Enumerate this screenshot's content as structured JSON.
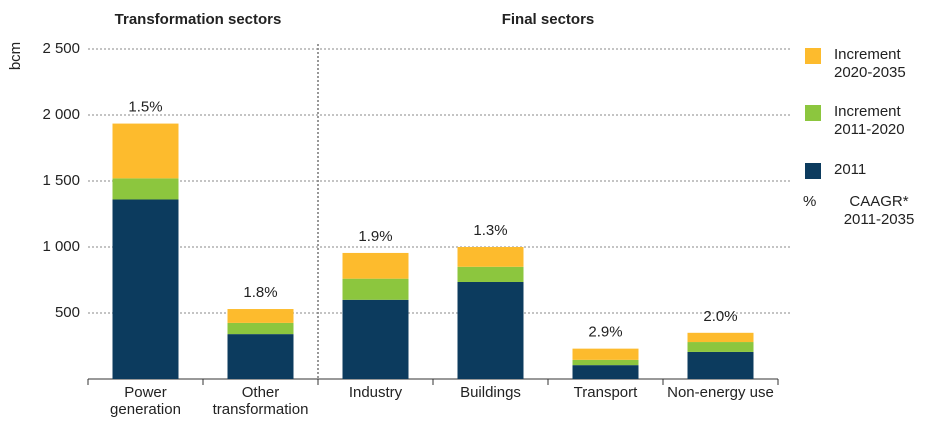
{
  "chart_data": {
    "type": "stacked_bar",
    "group_labels": [
      "Transformation sectors",
      "Final sectors"
    ],
    "y_axis_label": "bcm",
    "categories": [
      "Power generation",
      "Other transformation",
      "Industry",
      "Buildings",
      "Transport",
      "Non-energy use"
    ],
    "series": [
      {
        "name": "2011",
        "color": "#0c3b5e",
        "values": [
          1360,
          340,
          600,
          735,
          105,
          205
        ]
      },
      {
        "name": "Increment 2011-2020",
        "color": "#8cc63e",
        "values": [
          160,
          85,
          160,
          115,
          40,
          75
        ]
      },
      {
        "name": "Increment 2020-2035",
        "color": "#fdbb2d",
        "values": [
          415,
          105,
          195,
          150,
          85,
          70
        ]
      }
    ],
    "caagr_labels": [
      "1.5%",
      "1.8%",
      "1.9%",
      "1.3%",
      "2.9%",
      "2.0%"
    ],
    "legend_note": {
      "symbol": "%",
      "text": "CAAGR* 2011-2035"
    },
    "ylim": [
      0,
      2500
    ],
    "yticks": [
      500,
      {
        "value": 1000,
        "label": "1 000"
      },
      {
        "value": 1500,
        "label": "1 500"
      },
      {
        "value": 2000,
        "label": "2 000"
      },
      {
        "value": 2500,
        "label": "2 500"
      }
    ],
    "grid": true
  }
}
